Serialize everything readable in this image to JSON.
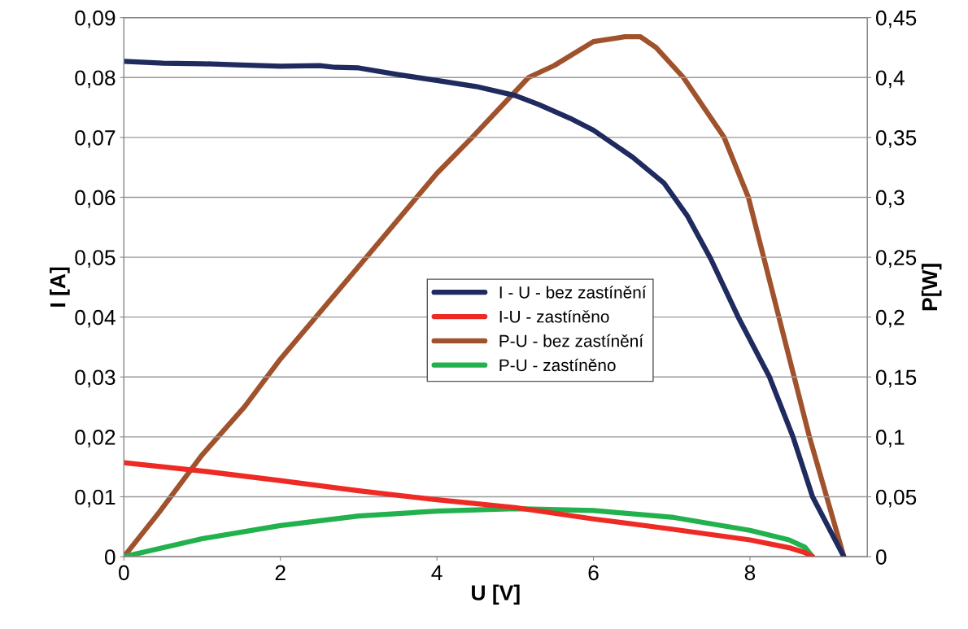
{
  "chart_data": {
    "type": "line",
    "xlabel": "U [V]",
    "ylabel": "I [A]",
    "y2label": "P[W]",
    "xlim": [
      0,
      9.5
    ],
    "xticks": [
      0,
      2,
      4,
      6,
      8
    ],
    "ylim": [
      0,
      0.09
    ],
    "yticks": [
      {
        "value": 0,
        "label": "0"
      },
      {
        "value": 0.01,
        "label": "0,01"
      },
      {
        "value": 0.02,
        "label": "0,02"
      },
      {
        "value": 0.03,
        "label": "0,03"
      },
      {
        "value": 0.04,
        "label": "0,04"
      },
      {
        "value": 0.05,
        "label": "0,05"
      },
      {
        "value": 0.06,
        "label": "0,06"
      },
      {
        "value": 0.07,
        "label": "0,07"
      },
      {
        "value": 0.08,
        "label": "0,08"
      },
      {
        "value": 0.09,
        "label": "0,09"
      }
    ],
    "y2lim": [
      0,
      0.45
    ],
    "y2ticks": [
      {
        "value": 0,
        "label": "0"
      },
      {
        "value": 0.05,
        "label": "0,05"
      },
      {
        "value": 0.1,
        "label": "0,1"
      },
      {
        "value": 0.15,
        "label": "0,15"
      },
      {
        "value": 0.2,
        "label": "0,2"
      },
      {
        "value": 0.25,
        "label": "0,25"
      },
      {
        "value": 0.3,
        "label": "0,3"
      },
      {
        "value": 0.35,
        "label": "0,35"
      },
      {
        "value": 0.4,
        "label": "0,4"
      },
      {
        "value": 0.45,
        "label": "0,45"
      }
    ],
    "grid": "y",
    "legend": "center",
    "marker": "none",
    "line_style": "solid",
    "series": [
      {
        "name": "I - U - bez zastínění",
        "color": "#1f2a5e",
        "x": [
          0,
          0.5,
          1,
          1.5,
          2,
          2.5,
          2.7,
          3,
          3.5,
          4,
          4.5,
          5,
          5.3,
          5.7,
          6,
          6.5,
          6.9,
          7.2,
          7.5,
          7.85,
          8.25,
          8.55,
          8.8,
          9.2
        ],
        "values": [
          0.0827,
          0.0824,
          0.0823,
          0.0821,
          0.0819,
          0.082,
          0.0817,
          0.0816,
          0.0805,
          0.0795,
          0.0785,
          0.077,
          0.0755,
          0.0732,
          0.0712,
          0.0667,
          0.0624,
          0.0569,
          0.0497,
          0.04,
          0.03,
          0.02,
          0.01,
          0
        ]
      },
      {
        "name": "I-U - zastíněno",
        "color": "#ee2a24",
        "x": [
          0,
          1,
          2,
          3,
          4,
          5,
          6,
          7,
          8,
          8.5,
          8.7,
          8.8
        ],
        "values": [
          0.0157,
          0.0143,
          0.0127,
          0.011,
          0.0095,
          0.0082,
          0.0063,
          0.0046,
          0.0028,
          0.0015,
          0.0007,
          0
        ]
      },
      {
        "name": "P-U - bez zastínění",
        "color": "#a0522d",
        "axis": "y2",
        "x": [
          0,
          0.45,
          1,
          1.54,
          2,
          3.1,
          4,
          4.45,
          5.17,
          5.5,
          6,
          6.4,
          6.6,
          6.8,
          7.15,
          7.67,
          7.98,
          8.37,
          8.76,
          9.2
        ],
        "values": [
          0,
          0.037,
          0.085,
          0.125,
          0.165,
          0.25,
          0.32,
          0.35,
          0.4,
          0.41,
          0.43,
          0.434,
          0.434,
          0.425,
          0.4,
          0.35,
          0.3,
          0.2,
          0.1,
          0
        ]
      },
      {
        "name": "P-U - zastíněno",
        "color": "#22b14c",
        "axis": "y2",
        "x": [
          0,
          1,
          2,
          3,
          4,
          5,
          6,
          7,
          8,
          8.5,
          8.7,
          8.8
        ],
        "values": [
          0,
          0.015,
          0.026,
          0.034,
          0.038,
          0.04,
          0.0385,
          0.033,
          0.022,
          0.014,
          0.008,
          0
        ]
      }
    ]
  }
}
